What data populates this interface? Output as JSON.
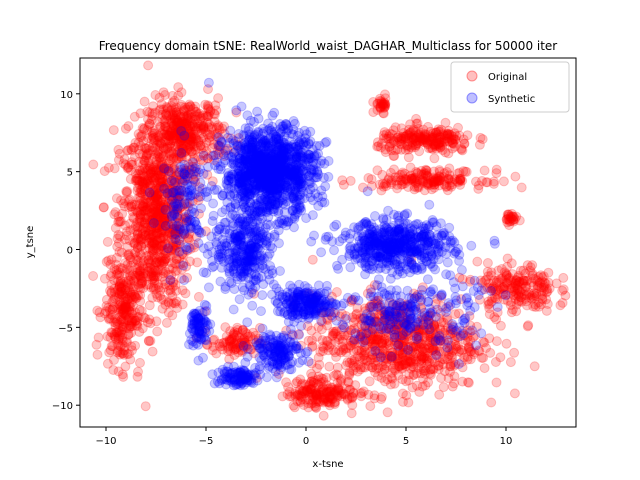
{
  "chart_data": {
    "type": "scatter",
    "title": "Frequency domain tSNE: RealWorld_waist_DAGHAR_Multiclass for 50000 iter",
    "xlabel": "x-tsne",
    "ylabel": "y_tsne",
    "xlim": [
      -11.3,
      13.5
    ],
    "ylim": [
      -11.4,
      12.3
    ],
    "x_ticks": [
      -10,
      -5,
      0,
      5,
      10
    ],
    "y_ticks": [
      -10,
      -5,
      0,
      5,
      10
    ],
    "legend_position": "top-right",
    "grid": false,
    "series": [
      {
        "name": "Original",
        "color": "#ff0000",
        "alpha": 0.22,
        "clusters": [
          {
            "center": [
              -7.5,
              2.0
            ],
            "spread": [
              1.5,
              5.0
            ],
            "n": 900
          },
          {
            "center": [
              -6.0,
              7.5
            ],
            "spread": [
              1.6,
              1.8
            ],
            "n": 380
          },
          {
            "center": [
              -9.2,
              -4.0
            ],
            "spread": [
              0.8,
              3.0
            ],
            "n": 250
          },
          {
            "center": [
              -3.5,
              -6.0
            ],
            "spread": [
              1.0,
              0.8
            ],
            "n": 90
          },
          {
            "center": [
              4.5,
              -6.0
            ],
            "spread": [
              3.5,
              2.5
            ],
            "n": 750
          },
          {
            "center": [
              0.8,
              -9.2
            ],
            "spread": [
              1.5,
              0.8
            ],
            "n": 170
          },
          {
            "center": [
              10.5,
              -2.5
            ],
            "spread": [
              1.6,
              1.3
            ],
            "n": 200
          },
          {
            "center": [
              6.0,
              7.0
            ],
            "spread": [
              2.0,
              0.7
            ],
            "n": 220
          },
          {
            "center": [
              6.0,
              4.5
            ],
            "spread": [
              2.5,
              0.5
            ],
            "n": 170
          },
          {
            "center": [
              3.8,
              9.3
            ],
            "spread": [
              0.3,
              0.4
            ],
            "n": 30
          },
          {
            "center": [
              10.2,
              2.0
            ],
            "spread": [
              0.3,
              0.3
            ],
            "n": 25
          }
        ]
      },
      {
        "name": "Synthetic",
        "color": "#0000ff",
        "alpha": 0.22,
        "clusters": [
          {
            "center": [
              -1.8,
              5.0
            ],
            "spread": [
              1.9,
              2.3
            ],
            "n": 1100
          },
          {
            "center": [
              -3.0,
              0.0
            ],
            "spread": [
              1.3,
              2.3
            ],
            "n": 320
          },
          {
            "center": [
              4.5,
              0.3
            ],
            "spread": [
              2.3,
              1.3
            ],
            "n": 500
          },
          {
            "center": [
              0.0,
              -3.5
            ],
            "spread": [
              1.2,
              0.8
            ],
            "n": 200
          },
          {
            "center": [
              -1.5,
              -6.5
            ],
            "spread": [
              1.0,
              1.0
            ],
            "n": 150
          },
          {
            "center": [
              -3.5,
              -8.2
            ],
            "spread": [
              1.0,
              0.5
            ],
            "n": 100
          },
          {
            "center": [
              -5.3,
              -5.0
            ],
            "spread": [
              0.4,
              1.3
            ],
            "n": 80
          },
          {
            "center": [
              5.0,
              -4.0
            ],
            "spread": [
              3.0,
              2.0
            ],
            "n": 220
          },
          {
            "center": [
              -6.0,
              3.0
            ],
            "spread": [
              1.0,
              3.0
            ],
            "n": 120
          }
        ]
      }
    ]
  }
}
